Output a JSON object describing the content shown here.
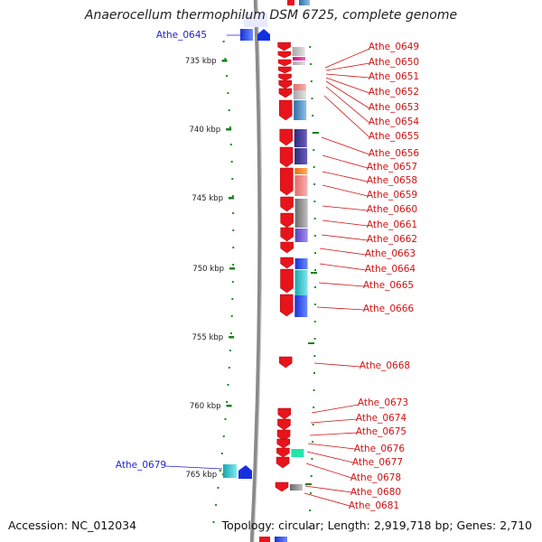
{
  "title": "Anaerocellum thermophilum DSM 6725, complete genome",
  "footer": {
    "accession": "Accession: NC_012034",
    "summary": "Topology: circular; Length: 2,919,718 bp; Genes: 2,710"
  },
  "colors": {
    "forward_cds": "#e8141c",
    "label_forward": "#d11111",
    "label_reverse": "#1f1fd1",
    "scale_ticks": "#1a7f1a",
    "backbone": "#8a8a8a"
  },
  "scale": {
    "unit": "kbp",
    "ticks": [
      {
        "label": "735 kbp",
        "value": 735
      },
      {
        "label": "740 kbp",
        "value": 740
      },
      {
        "label": "745 kbp",
        "value": 745
      },
      {
        "label": "750 kbp",
        "value": 750
      },
      {
        "label": "755 kbp",
        "value": 755
      },
      {
        "label": "760 kbp",
        "value": 760
      },
      {
        "label": "765 kbp",
        "value": 765
      }
    ]
  },
  "genes": [
    {
      "label": "Athe_0645",
      "strand": "reverse"
    },
    {
      "label": "Athe_0649",
      "strand": "forward"
    },
    {
      "label": "Athe_0650",
      "strand": "forward"
    },
    {
      "label": "Athe_0651",
      "strand": "forward"
    },
    {
      "label": "Athe_0652",
      "strand": "forward"
    },
    {
      "label": "Athe_0653",
      "strand": "forward"
    },
    {
      "label": "Athe_0654",
      "strand": "forward"
    },
    {
      "label": "Athe_0655",
      "strand": "forward"
    },
    {
      "label": "Athe_0656",
      "strand": "forward"
    },
    {
      "label": "Athe_0657",
      "strand": "forward"
    },
    {
      "label": "Athe_0658",
      "strand": "forward"
    },
    {
      "label": "Athe_0659",
      "strand": "forward"
    },
    {
      "label": "Athe_0660",
      "strand": "forward"
    },
    {
      "label": "Athe_0661",
      "strand": "forward"
    },
    {
      "label": "Athe_0662",
      "strand": "forward"
    },
    {
      "label": "Athe_0663",
      "strand": "forward"
    },
    {
      "label": "Athe_0664",
      "strand": "forward"
    },
    {
      "label": "Athe_0665",
      "strand": "forward"
    },
    {
      "label": "Athe_0666",
      "strand": "forward"
    },
    {
      "label": "Athe_0668",
      "strand": "forward"
    },
    {
      "label": "Athe_0673",
      "strand": "forward"
    },
    {
      "label": "Athe_0674",
      "strand": "forward"
    },
    {
      "label": "Athe_0675",
      "strand": "forward"
    },
    {
      "label": "Athe_0676",
      "strand": "forward"
    },
    {
      "label": "Athe_0677",
      "strand": "forward"
    },
    {
      "label": "Athe_0678",
      "strand": "forward"
    },
    {
      "label": "Athe_0680",
      "strand": "forward"
    },
    {
      "label": "Athe_0681",
      "strand": "forward"
    },
    {
      "label": "Athe_0679",
      "strand": "reverse"
    }
  ]
}
